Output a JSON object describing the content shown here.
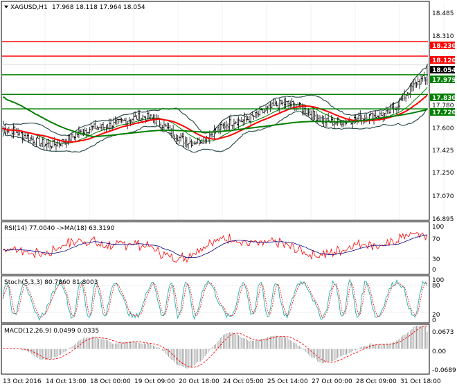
{
  "header": {
    "symbol": "XAGUSD,H1",
    "ohlc": "17.968 18.118 17.964 18.054"
  },
  "price_axis": {
    "ticks": [
      "18.485",
      "18.310",
      "18.230",
      "18.120",
      "18.054",
      "17.979",
      "17.830",
      "17.780",
      "17.720",
      "17.600",
      "17.425",
      "17.250",
      "17.070",
      "16.895"
    ],
    "ylim": [
      16.88,
      18.53
    ]
  },
  "price_labels": [
    {
      "value": "18.230",
      "color": "#ff0000"
    },
    {
      "value": "18.120",
      "color": "#ff0000"
    },
    {
      "value": "18.054",
      "color": "#000000"
    },
    {
      "value": "17.979",
      "color": "#008000"
    },
    {
      "value": "17.830",
      "color": "#008000"
    },
    {
      "value": "17.720",
      "color": "#008000"
    }
  ],
  "rsi": {
    "title": "RSI(14) 77.0040  ->MA(18) 63.3190",
    "ticks": [
      "100",
      "70",
      "30",
      "0"
    ]
  },
  "stoch": {
    "title": "Stoch(5,3,3) 80.7860 81.8003",
    "ticks": [
      "100",
      "80",
      "20",
      "0"
    ]
  },
  "macd": {
    "title": "MACD(12,26,9) 0.0499 0.0335",
    "ticks": [
      "0.0673",
      "0.00",
      "-0.0689"
    ]
  },
  "time_axis": {
    "labels": [
      "13 Oct 2016",
      "14 Oct 13:00",
      "18 Oct 00:00",
      "19 Oct 09:00",
      "20 Oct 18:00",
      "24 Oct 05:00",
      "25 Oct 14:00",
      "27 Oct 00:00",
      "28 Oct 09:00",
      "31 Oct 18:00"
    ]
  },
  "colors": {
    "resistance": "#ff0000",
    "support": "#008000",
    "bollinger": "#2f4f4f",
    "ma_red": "#ff0000",
    "ma_green": "#008000",
    "rsi_line": "#ff0000",
    "rsi_ma": "#000080",
    "stoch_main": "#20b2aa",
    "stoch_signal": "#ff0000",
    "macd_hist": "#a0a0a0",
    "macd_signal": "#ff0000"
  },
  "chart_data": {
    "type": "line",
    "title": "XAGUSD,H1",
    "x": [
      "13 Oct 2016",
      "14 Oct 13:00",
      "18 Oct 00:00",
      "19 Oct 09:00",
      "20 Oct 18:00",
      "24 Oct 05:00",
      "25 Oct 14:00",
      "27 Oct 00:00",
      "28 Oct 09:00",
      "31 Oct 18:00"
    ],
    "series": [
      {
        "values": [
          17.57,
          17.45,
          17.58,
          17.66,
          17.47,
          17.63,
          17.76,
          17.62,
          17.67,
          17.95
        ]
      }
    ],
    "horizontal_lines": [
      18.23,
      18.12,
      17.979,
      17.83,
      17.72
    ],
    "ylim": [
      16.88,
      18.53
    ]
  }
}
